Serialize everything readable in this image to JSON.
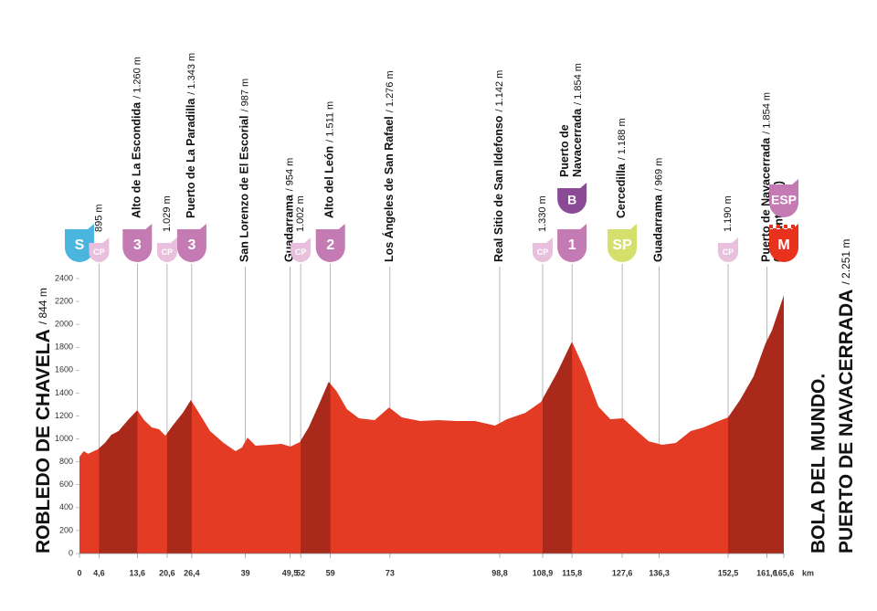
{
  "chart_data": {
    "type": "area",
    "start_name": "ROBLEDO DE CHAVELA",
    "start_alt": "/ 844 m",
    "finish_name": "BOLA DEL MUNDO.",
    "finish_name2": "PUERTO DE NAVACERRADA",
    "finish_alt": "/ 2.251 m",
    "x_unit": "km",
    "color": "#e33b24",
    "highlight_color": "#a9291b",
    "highlights": [
      {
        "from": 4.6,
        "to": 13.6
      },
      {
        "from": 20.6,
        "to": 26.4
      },
      {
        "from": 52,
        "to": 59
      },
      {
        "from": 108.9,
        "to": 115.8
      },
      {
        "from": 152.5,
        "to": 165.6
      }
    ],
    "x": [
      0,
      1,
      2,
      4.3,
      6,
      7.5,
      9.2,
      11.4,
      13.6,
      15.2,
      17,
      18.7,
      20.2,
      22.1,
      24.3,
      26.2,
      28.1,
      30.7,
      33.9,
      36.7,
      38.2,
      39.5,
      41.4,
      44.7,
      47.5,
      49.6,
      51.8,
      53.9,
      56.1,
      58.6,
      60.4,
      62.9,
      65.7,
      69.4,
      72.8,
      75.8,
      80.1,
      84.4,
      88.7,
      93,
      97.7,
      100.5,
      104.8,
      108.5,
      112.3,
      115.8,
      118.8,
      122,
      124.8,
      127.8,
      130.6,
      133.8,
      137,
      140.2,
      143.7,
      146.7,
      149.7,
      152.5,
      155.3,
      158.5,
      161.3,
      162.8,
      165.6
    ],
    "values": [
      845,
      893,
      870,
      909,
      965,
      1036,
      1068,
      1164,
      1251,
      1164,
      1100,
      1084,
      1028,
      1124,
      1227,
      1339,
      1227,
      1068,
      965,
      893,
      925,
      1012,
      941,
      949,
      957,
      933,
      972,
      1100,
      1283,
      1498,
      1419,
      1259,
      1180,
      1164,
      1275,
      1188,
      1156,
      1164,
      1156,
      1156,
      1116,
      1172,
      1227,
      1323,
      1578,
      1849,
      1602,
      1283,
      1172,
      1180,
      1084,
      980,
      949,
      965,
      1068,
      1100,
      1148,
      1188,
      1339,
      1546,
      1833,
      1945,
      2251
    ],
    "xlim": [
      0,
      165.6
    ],
    "ylim": [
      0,
      2400
    ],
    "yticks": [
      0,
      200,
      400,
      600,
      800,
      1000,
      1200,
      1400,
      1600,
      1800,
      2000,
      2200,
      2400
    ],
    "xticks": [
      0,
      {
        "value": 4.6,
        "label": "4,6"
      },
      {
        "value": 13.6,
        "label": "13,6"
      },
      {
        "value": 20.6,
        "label": "20,6"
      },
      {
        "value": 26.4,
        "label": "26,4"
      },
      39,
      {
        "value": 49.5,
        "label": "49,5"
      },
      52,
      59,
      73,
      {
        "value": 98.8,
        "label": "98,8"
      },
      {
        "value": 108.9,
        "label": "108,9"
      },
      {
        "value": 115.8,
        "label": "115,8"
      },
      {
        "value": 127.6,
        "label": "127,6"
      },
      {
        "value": 136.3,
        "label": "136,3"
      },
      {
        "value": 152.5,
        "label": "152,5"
      },
      {
        "value": 161.6,
        "label": "161,6"
      },
      {
        "value": 165.6,
        "label": "165,6"
      }
    ],
    "annotations": [
      {
        "km": 0,
        "badge": "S",
        "badge_color": "#4ab5df"
      },
      {
        "km": 4.6,
        "alt": "895 m",
        "badge": "CP",
        "badge_color": "#e8bfdc"
      },
      {
        "km": 13.6,
        "name": "Alto de La Escondida",
        "alt": "/ 1.260 m",
        "badge": "3",
        "badge_color": "#c47ab3"
      },
      {
        "km": 20.6,
        "alt": "1.029 m",
        "badge": "CP",
        "badge_color": "#e8bfdc"
      },
      {
        "km": 26.4,
        "name": "Puerto de La Paradilla",
        "alt": "/ 1.343 m",
        "badge": "3",
        "badge_color": "#c47ab3"
      },
      {
        "km": 39,
        "name": "San Lorenzo de El Escorial",
        "alt": "/ 987 m"
      },
      {
        "km": 49.5,
        "name": "Guadarrama",
        "alt": "/ 954 m"
      },
      {
        "km": 52,
        "alt": "1.002 m",
        "badge": "CP",
        "badge_color": "#e8bfdc"
      },
      {
        "km": 59,
        "name": "Alto del León",
        "alt": "/ 1.511 m",
        "badge": "2",
        "badge_color": "#c47ab3"
      },
      {
        "km": 73,
        "name": "Los Ángeles de San Rafael",
        "alt": "/ 1.276 m"
      },
      {
        "km": 98.8,
        "name": "Real Sitio de San Ildefonso",
        "alt": "/ 1.142 m"
      },
      {
        "km": 108.9,
        "alt": "1.330 m",
        "badge": "CP",
        "badge_color": "#e8bfdc"
      },
      {
        "km": 115.8,
        "name": "Puerto de",
        "name2": "Navacerrada",
        "alt": "/ 1.854 m",
        "badge": "1",
        "badge_color": "#c47ab3",
        "top_badge": "B",
        "top_badge_color": "#8b4a96"
      },
      {
        "km": 127.6,
        "name": "Cercedilla",
        "alt": "/ 1.188 m",
        "badge": "SP",
        "badge_color": "#d5e06c"
      },
      {
        "km": 136.3,
        "name": "Guadarrama",
        "alt": "/ 969 m"
      },
      {
        "km": 152.5,
        "alt": "1.190 m",
        "badge": "CP",
        "badge_color": "#e8bfdc"
      },
      {
        "km": 161.6,
        "name": "Puerto de Navacerrada",
        "alt": "/ 1.854 m",
        "note": "(No Puntuable)"
      },
      {
        "km": 165.6,
        "badge": "M",
        "badge_color": "#e8321e",
        "top_badge": "ESP",
        "top_badge_color": "#c47ab3"
      }
    ]
  }
}
